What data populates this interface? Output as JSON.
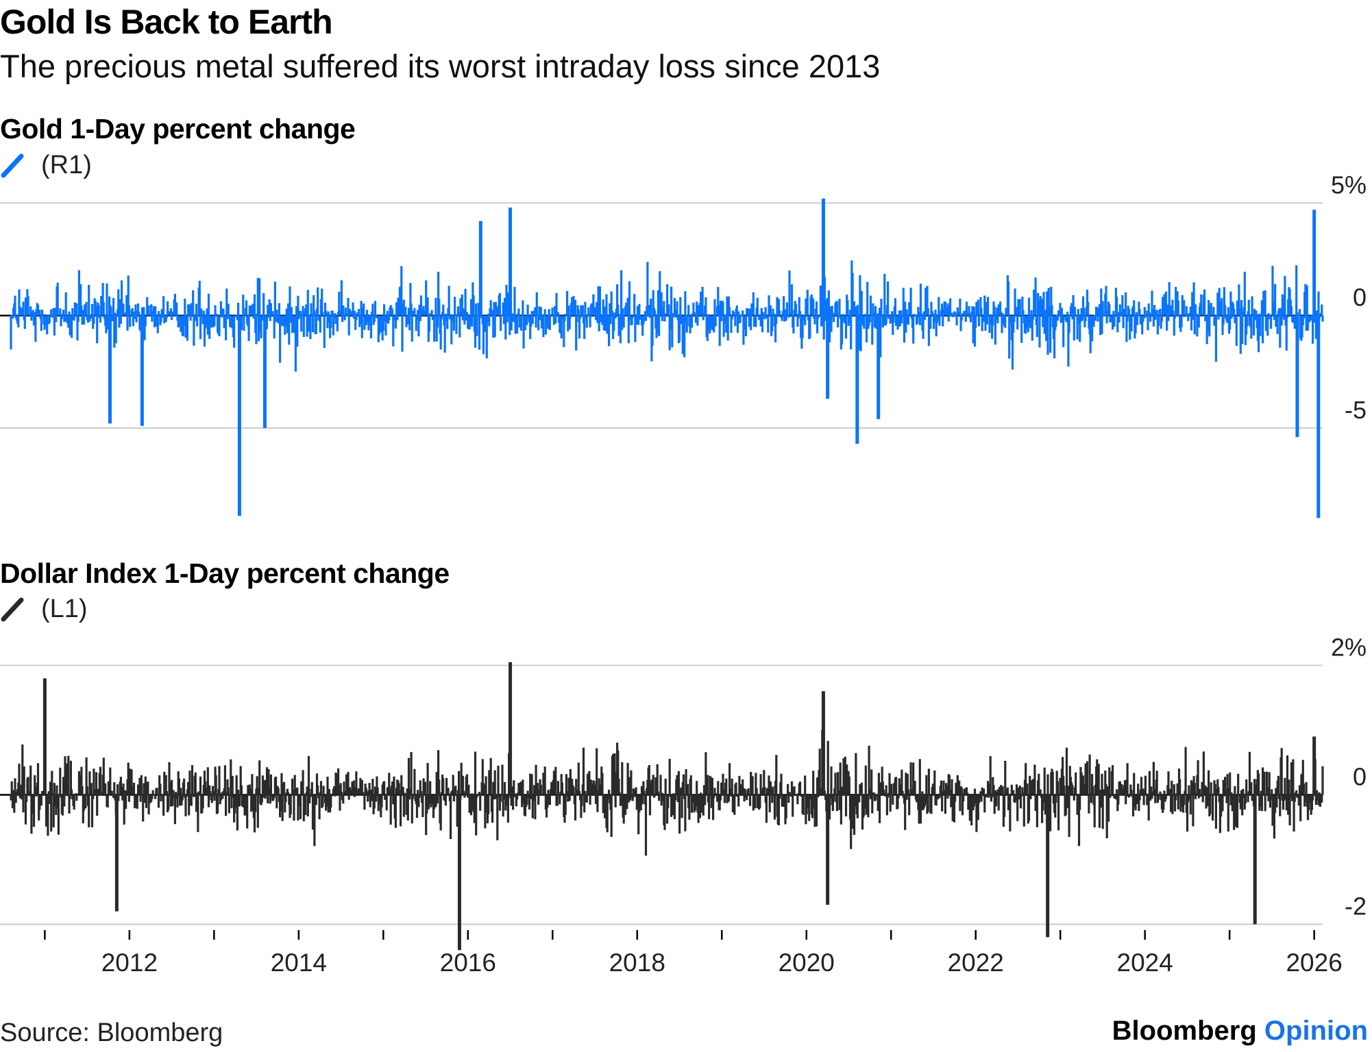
{
  "header": {
    "title": "Gold Is Back to Earth",
    "subtitle": "The precious metal suffered its worst intraday loss since 2013"
  },
  "colors": {
    "gold_series": "#0a74fb",
    "dollar_series": "#2a2a2a",
    "gridline": "#cccccc",
    "zero_line": "#000000",
    "brand_accent": "#1a73e8"
  },
  "chart_data": [
    {
      "type": "bar",
      "title": "Gold 1-Day percent change",
      "legend": [
        {
          "name": "(R1)",
          "color": "#0a74fb",
          "icon": "diagonal-line-icon"
        }
      ],
      "yaxis_side": "right",
      "ylim": [
        -8.5,
        5.5
      ],
      "yticks": [
        5,
        0,
        -5
      ],
      "ytick_labels": [
        "5%",
        "0",
        "-5"
      ],
      "x_range": [
        2010.6,
        2026.1
      ],
      "typical_daily_range": [
        -2.5,
        2.5
      ],
      "notable_points": [
        {
          "x": 2013.3,
          "value": -8.9
        },
        {
          "x": 2011.77,
          "value": -4.8
        },
        {
          "x": 2012.15,
          "value": -4.9
        },
        {
          "x": 2013.6,
          "value": -5.0
        },
        {
          "x": 2016.5,
          "value": 4.8
        },
        {
          "x": 2016.15,
          "value": 4.2
        },
        {
          "x": 2020.2,
          "value": 5.2
        },
        {
          "x": 2020.25,
          "value": -3.7
        },
        {
          "x": 2020.6,
          "value": -5.7
        },
        {
          "x": 2020.85,
          "value": -4.6
        },
        {
          "x": 2025.8,
          "value": -5.4
        },
        {
          "x": 2026.0,
          "value": 4.7
        },
        {
          "x": 2026.05,
          "value": -9.0
        }
      ]
    },
    {
      "type": "bar",
      "title": "Dollar Index 1-Day percent change",
      "legend": [
        {
          "name": "(L1)",
          "color": "#2a2a2a",
          "icon": "diagonal-line-icon"
        }
      ],
      "yaxis_side": "right",
      "ylim": [
        -2.45,
        2.1
      ],
      "yticks": [
        2,
        0,
        -2
      ],
      "ytick_labels": [
        "2%",
        "0",
        "-2"
      ],
      "x_range": [
        2010.6,
        2026.1
      ],
      "xticks": [
        2012,
        2014,
        2016,
        2018,
        2020,
        2022,
        2024,
        2026
      ],
      "xtick_labels": [
        "2012",
        "2014",
        "2016",
        "2018",
        "2020",
        "2022",
        "2024",
        "2026"
      ],
      "typical_daily_range": [
        -1.0,
        1.0
      ],
      "notable_points": [
        {
          "x": 2011.0,
          "value": 1.8
        },
        {
          "x": 2011.85,
          "value": -1.8
        },
        {
          "x": 2015.9,
          "value": -2.4
        },
        {
          "x": 2016.5,
          "value": 2.05
        },
        {
          "x": 2020.2,
          "value": 1.6
        },
        {
          "x": 2020.25,
          "value": -1.7
        },
        {
          "x": 2022.85,
          "value": -2.2
        },
        {
          "x": 2025.3,
          "value": -2.0
        },
        {
          "x": 2026.0,
          "value": 0.9
        }
      ]
    }
  ],
  "footer": {
    "source": "Source: Bloomberg",
    "brand_main": "Bloomberg",
    "brand_accent": "Opinion"
  }
}
